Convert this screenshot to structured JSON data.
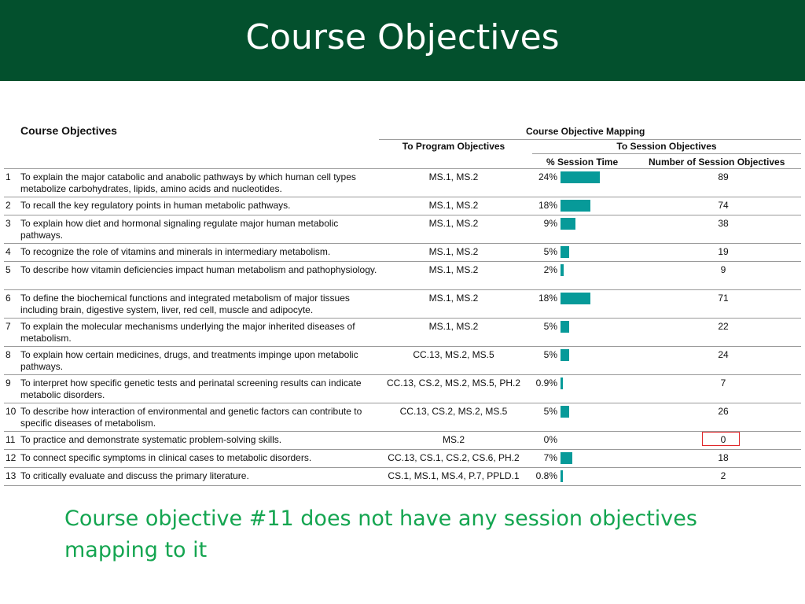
{
  "slide": {
    "title": "Course Objectives",
    "note": "Course objective #11 does not have any session objectives mapping to it"
  },
  "table": {
    "col_course_objectives": "Course Objectives",
    "col_mapping": "Course Objective Mapping",
    "col_program": "To Program Objectives",
    "col_session": "To Session Objectives",
    "col_pct": "% Session Time",
    "col_count": "Number of Session Objectives",
    "bar_color": "#079a99",
    "flag_color": "#e0272a",
    "rows": [
      {
        "num": "1",
        "text": "To explain the major catabolic and anabolic pathways by which human cell types metabolize carbohydrates, lipids, amino acids and nucleotides.",
        "program": "MS.1, MS.2",
        "pct_label": "24%",
        "pct": 24,
        "count": "89"
      },
      {
        "num": "2",
        "text": "To recall the key regulatory points in human metabolic pathways.",
        "program": "MS.1, MS.2",
        "pct_label": "18%",
        "pct": 18,
        "count": "74"
      },
      {
        "num": "3",
        "text": "To explain how diet and hormonal signaling regulate major human metabolic pathways.",
        "program": "MS.1, MS.2",
        "pct_label": "9%",
        "pct": 9,
        "count": "38"
      },
      {
        "num": "4",
        "text": "To recognize the role of vitamins and minerals in intermediary metabolism.",
        "program": "MS.1, MS.2",
        "pct_label": "5%",
        "pct": 5,
        "count": "19"
      },
      {
        "num": "5",
        "text": "To describe how vitamin deficiencies impact human metabolism and pathophysiology.",
        "program": "MS.1, MS.2",
        "pct_label": "2%",
        "pct": 2,
        "count": "9"
      },
      {
        "num": "6",
        "text": "To define the biochemical functions and integrated metabolism of major tissues including brain, digestive system, liver, red cell, muscle and adipocyte.",
        "program": "MS.1, MS.2",
        "pct_label": "18%",
        "pct": 18,
        "count": "71"
      },
      {
        "num": "7",
        "text": "To explain the molecular mechanisms underlying the major inherited diseases of metabolism.",
        "program": "MS.1, MS.2",
        "pct_label": "5%",
        "pct": 5,
        "count": "22"
      },
      {
        "num": "8",
        "text": "To explain how certain medicines, drugs, and treatments impinge upon metabolic pathways.",
        "program": "CC.13, MS.2, MS.5",
        "pct_label": "5%",
        "pct": 5,
        "count": "24"
      },
      {
        "num": "9",
        "text": "To interpret how specific genetic tests and perinatal screening results can indicate metabolic disorders.",
        "program": "CC.13, CS.2, MS.2, MS.5, PH.2",
        "pct_label": "0.9%",
        "pct": 0.9,
        "count": "7"
      },
      {
        "num": "10",
        "text": "To describe how interaction of environmental and genetic factors can contribute to specific diseases of metabolism.",
        "program": "CC.13, CS.2, MS.2, MS.5",
        "pct_label": "5%",
        "pct": 5,
        "count": "26"
      },
      {
        "num": "11",
        "text": "To practice and demonstrate systematic problem-solving skills.",
        "program": "MS.2",
        "pct_label": "0%",
        "pct": 0,
        "count": "0",
        "flagged": true
      },
      {
        "num": "12",
        "text": "To connect specific symptoms in clinical cases to metabolic disorders.",
        "program": "CC.13, CS.1, CS.2, CS.6, PH.2",
        "pct_label": "7%",
        "pct": 7,
        "count": "18"
      },
      {
        "num": "13",
        "text": "To critically evaluate and discuss the primary literature.",
        "program": "CS.1, MS.1, MS.4, P.7, PPLD.1",
        "pct_label": "0.8%",
        "pct": 0.8,
        "count": "2"
      }
    ]
  }
}
